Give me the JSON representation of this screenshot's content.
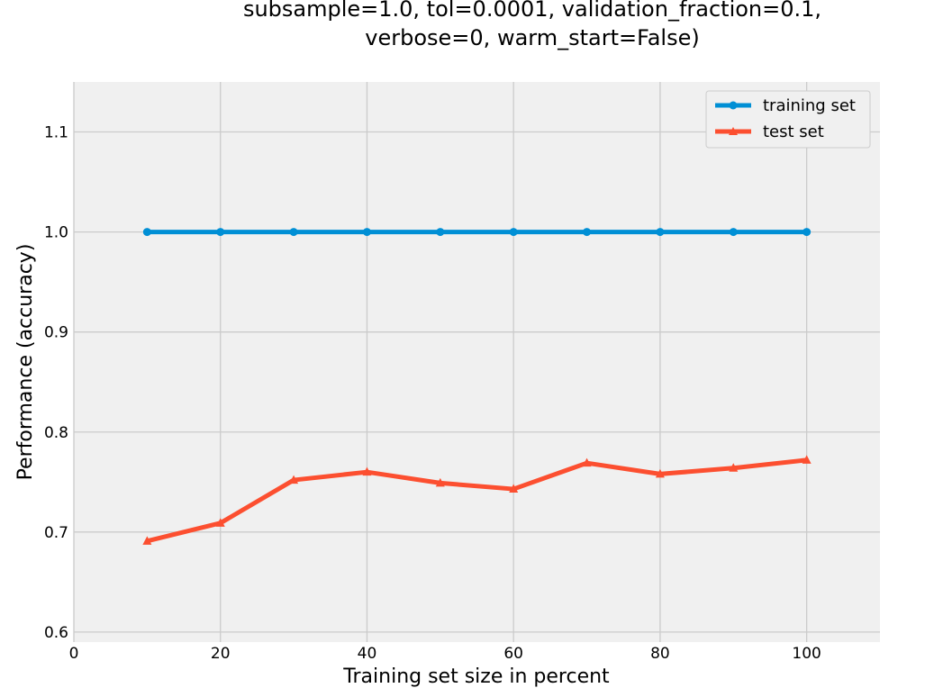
{
  "chart_data": {
    "type": "line",
    "title_lines": [
      "subsample=1.0, tol=0.0001, validation_fraction=0.1,",
      "verbose=0, warm_start=False)"
    ],
    "xlabel": "Training set size in percent",
    "ylabel": "Performance (accuracy)",
    "xlim": [
      0,
      110
    ],
    "ylim": [
      0.59,
      1.15
    ],
    "xticks": [
      0,
      20,
      40,
      60,
      80,
      100
    ],
    "yticks": [
      0.6,
      0.7,
      0.8,
      0.9,
      1.0,
      1.1
    ],
    "xtick_labels": [
      "0",
      "20",
      "40",
      "60",
      "80",
      "100"
    ],
    "ytick_labels": [
      "0.6",
      "0.7",
      "0.8",
      "0.9",
      "1.0",
      "1.1"
    ],
    "grid": true,
    "legend_position": "top-right",
    "x": [
      10,
      20,
      30,
      40,
      50,
      60,
      70,
      80,
      90,
      100
    ],
    "series": [
      {
        "name": "training set",
        "color": "#008fd5",
        "marker": "circle",
        "values": [
          1.0,
          1.0,
          1.0,
          1.0,
          1.0,
          1.0,
          1.0,
          1.0,
          1.0,
          1.0
        ]
      },
      {
        "name": "test set",
        "color": "#fc4f30",
        "marker": "triangle",
        "values": [
          0.691,
          0.709,
          0.752,
          0.76,
          0.749,
          0.743,
          0.769,
          0.758,
          0.764,
          0.772
        ]
      }
    ]
  },
  "colors": {
    "plot_background": "#f0f0f0",
    "grid": "#cbcbcb",
    "legend_border": "#cccccc"
  }
}
